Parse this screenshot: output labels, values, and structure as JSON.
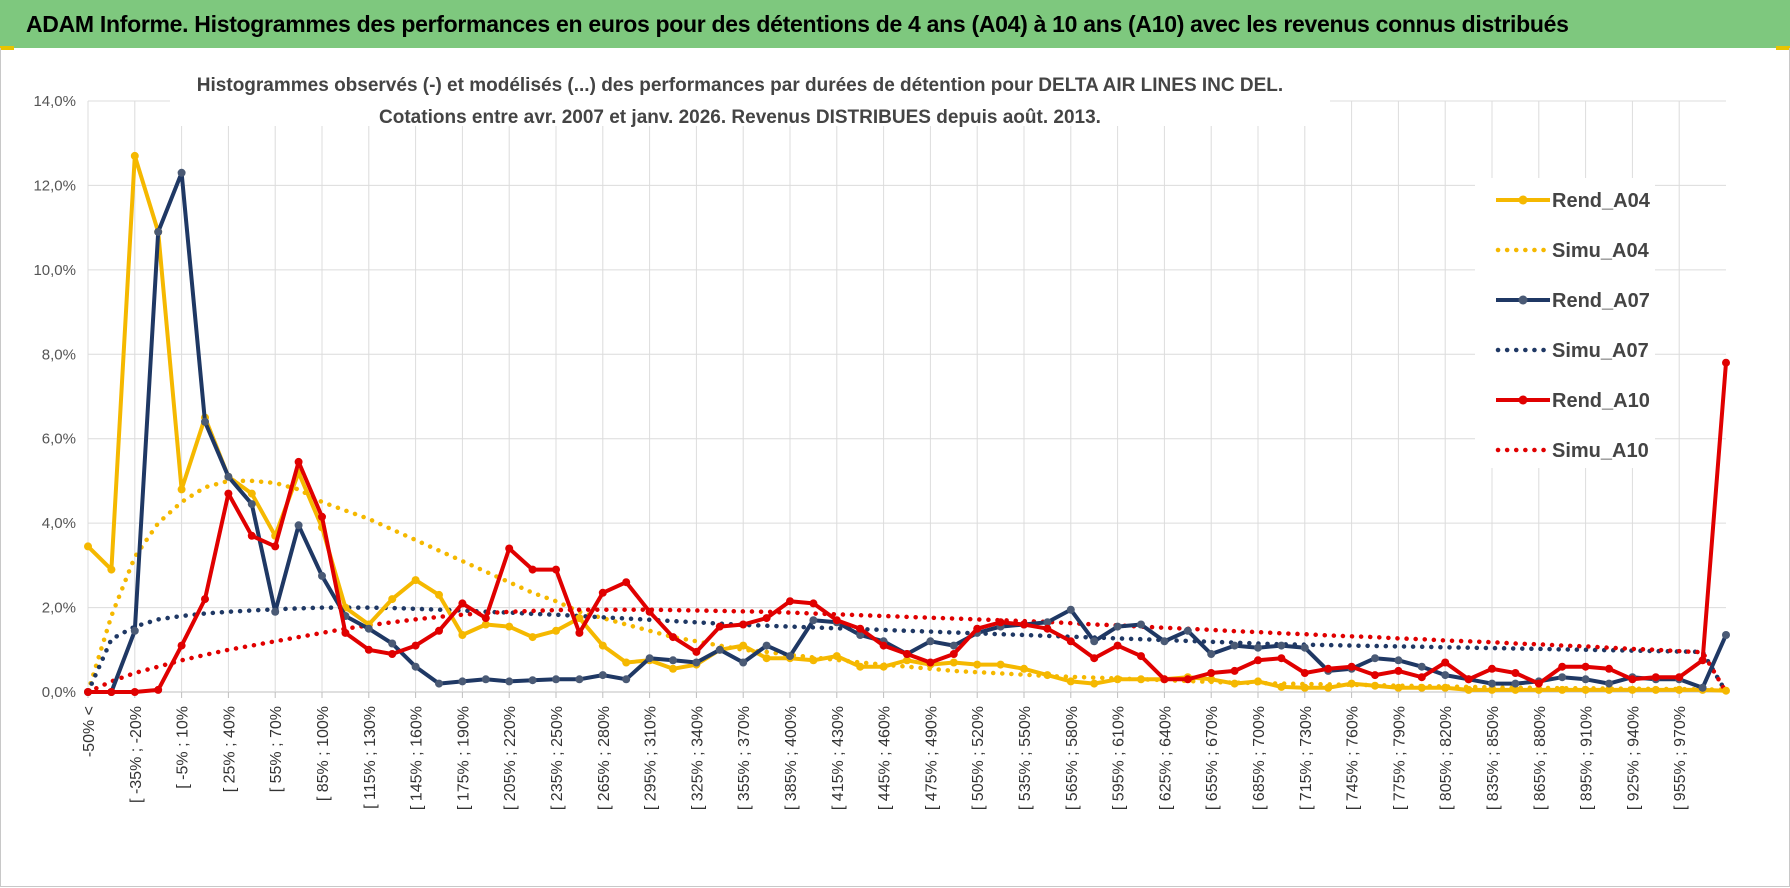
{
  "header": {
    "title": "ADAM Informe. Histogrammes des performances en euros pour des détentions de 4 ans (A04) à 10 ans (A10) avec les revenus connus distribués"
  },
  "chart_data": {
    "type": "line",
    "title_line1": "Histogrammes observés (-) et modélisés (...) des performances par durées de détention pour DELTA AIR LINES INC DEL.",
    "title_line2": "Cotations entre avr. 2007 et janv. 2026. Revenus DISTRIBUES depuis août. 2013.",
    "y_ticks": [
      "0,0%",
      "2,0%",
      "4,0%",
      "6,0%",
      "8,0%",
      "10,0%",
      "12,0%",
      "14,0%"
    ],
    "ylim": [
      0,
      14
    ],
    "x_labels": [
      "-50% <",
      "[ -35% ; -20%",
      "[ -5% ; 10%",
      "[ 25% ; 40%",
      "[ 55% ; 70%",
      "[ 85% ; 100%",
      "[ 115% ; 130%",
      "[ 145% ; 160%",
      "[ 175% ; 190%",
      "[ 205% ; 220%",
      "[ 235% ; 250%",
      "[ 265% ; 280%",
      "[ 295% ; 310%",
      "[ 325% ; 340%",
      "[ 355% ; 370%",
      "[ 385% ; 400%",
      "[ 415% ; 430%",
      "[ 445% ; 460%",
      "[ 475% ; 490%",
      "[ 505% ; 520%",
      "[ 535% ; 550%",
      "[ 565% ; 580%",
      "[ 595% ; 610%",
      "[ 625% ; 640%",
      "[ 655% ; 670%",
      "[ 685% ; 700%",
      "[ 715% ; 730%",
      "[ 745% ; 760%",
      "[ 775% ; 790%",
      "[ 805% ; 820%",
      "[ 835% ; 850%",
      "[ 865% ; 880%",
      "[ 895% ; 910%",
      "[ 925% ; 940%",
      "[ 955% ; 970%"
    ],
    "num_points": 71,
    "series": [
      {
        "name": "Rend_A04",
        "style": "solid",
        "color": "#f5b800",
        "values": [
          3.45,
          2.9,
          12.7,
          10.9,
          4.8,
          6.5,
          5.1,
          4.7,
          3.7,
          5.2,
          3.9,
          2.0,
          1.6,
          2.2,
          2.65,
          2.3,
          1.35,
          1.6,
          1.55,
          1.3,
          1.45,
          1.75,
          1.1,
          0.7,
          0.75,
          0.55,
          0.65,
          1.0,
          1.1,
          0.8,
          0.8,
          0.75,
          0.85,
          0.6,
          0.6,
          0.75,
          0.65,
          0.7,
          0.65,
          0.65,
          0.55,
          0.4,
          0.25,
          0.2,
          0.3,
          0.3,
          0.3,
          0.35,
          0.3,
          0.2,
          0.25,
          0.12,
          0.1,
          0.1,
          0.2,
          0.15,
          0.1,
          0.1,
          0.1,
          0.05,
          0.05,
          0.05,
          0.05,
          0.05,
          0.05,
          0.05,
          0.05,
          0.05,
          0.05,
          0.05,
          0.03
        ]
      },
      {
        "name": "Simu_A04",
        "style": "dotted",
        "color": "#f5b800",
        "values": [
          0.0,
          1.8,
          3.2,
          4.0,
          4.5,
          4.85,
          5.0,
          5.0,
          4.95,
          4.8,
          4.5,
          4.3,
          4.1,
          3.85,
          3.6,
          3.35,
          3.1,
          2.85,
          2.6,
          2.35,
          2.15,
          1.9,
          1.75,
          1.6,
          1.45,
          1.3,
          1.2,
          1.1,
          1.0,
          0.95,
          0.88,
          0.82,
          0.76,
          0.7,
          0.65,
          0.6,
          0.55,
          0.5,
          0.47,
          0.44,
          0.41,
          0.38,
          0.36,
          0.34,
          0.32,
          0.3,
          0.28,
          0.26,
          0.24,
          0.22,
          0.21,
          0.2,
          0.19,
          0.18,
          0.17,
          0.16,
          0.15,
          0.14,
          0.13,
          0.12,
          0.11,
          0.1,
          0.1,
          0.09,
          0.09,
          0.08,
          0.08,
          0.07,
          0.07,
          0.06,
          0.06
        ]
      },
      {
        "name": "Rend_A07",
        "style": "solid",
        "color": "#1f3864",
        "values": [
          0.0,
          0.0,
          1.45,
          10.9,
          12.3,
          6.4,
          5.1,
          4.45,
          1.9,
          3.95,
          2.75,
          1.8,
          1.5,
          1.15,
          0.6,
          0.2,
          0.25,
          0.3,
          0.25,
          0.28,
          0.3,
          0.3,
          0.4,
          0.3,
          0.8,
          0.75,
          0.7,
          1.0,
          0.7,
          1.1,
          0.85,
          1.7,
          1.65,
          1.35,
          1.2,
          0.9,
          1.2,
          1.1,
          1.4,
          1.55,
          1.6,
          1.65,
          1.95,
          1.2,
          1.55,
          1.6,
          1.2,
          1.45,
          0.9,
          1.1,
          1.05,
          1.1,
          1.05,
          0.5,
          0.55,
          0.8,
          0.75,
          0.6,
          0.4,
          0.3,
          0.2,
          0.2,
          0.25,
          0.35,
          0.3,
          0.2,
          0.35,
          0.3,
          0.3,
          0.1,
          1.35
        ]
      },
      {
        "name": "Simu_A07",
        "style": "dotted",
        "color": "#1f3864",
        "values": [
          0.0,
          1.25,
          1.55,
          1.72,
          1.8,
          1.86,
          1.9,
          1.93,
          1.96,
          1.98,
          2.0,
          2.0,
          2.0,
          1.99,
          1.97,
          1.95,
          1.93,
          1.9,
          1.88,
          1.85,
          1.83,
          1.8,
          1.77,
          1.74,
          1.71,
          1.68,
          1.65,
          1.62,
          1.59,
          1.57,
          1.55,
          1.53,
          1.51,
          1.49,
          1.47,
          1.45,
          1.43,
          1.41,
          1.39,
          1.37,
          1.35,
          1.33,
          1.31,
          1.29,
          1.27,
          1.25,
          1.23,
          1.21,
          1.19,
          1.17,
          1.15,
          1.13,
          1.12,
          1.11,
          1.1,
          1.09,
          1.08,
          1.07,
          1.06,
          1.05,
          1.04,
          1.03,
          1.02,
          1.01,
          1.0,
          0.99,
          0.98,
          0.97,
          0.96,
          0.95,
          0.0
        ]
      },
      {
        "name": "Rend_A10",
        "style": "solid",
        "color": "#e00000",
        "values": [
          0.0,
          0.0,
          0.0,
          0.05,
          1.1,
          2.2,
          4.7,
          3.7,
          3.45,
          5.45,
          4.15,
          1.4,
          1.0,
          0.9,
          1.1,
          1.45,
          2.1,
          1.75,
          3.4,
          2.9,
          2.9,
          1.4,
          2.35,
          2.6,
          1.9,
          1.3,
          0.95,
          1.55,
          1.6,
          1.75,
          2.15,
          2.1,
          1.7,
          1.5,
          1.1,
          0.9,
          0.7,
          0.9,
          1.5,
          1.65,
          1.6,
          1.5,
          1.2,
          0.8,
          1.1,
          0.85,
          0.3,
          0.3,
          0.45,
          0.5,
          0.75,
          0.8,
          0.45,
          0.55,
          0.6,
          0.4,
          0.5,
          0.35,
          0.7,
          0.3,
          0.55,
          0.45,
          0.2,
          0.6,
          0.6,
          0.55,
          0.3,
          0.35,
          0.35,
          0.75,
          7.8
        ]
      },
      {
        "name": "Simu_A10",
        "style": "dotted",
        "color": "#e00000",
        "values": [
          0.0,
          0.25,
          0.45,
          0.6,
          0.75,
          0.88,
          1.0,
          1.1,
          1.2,
          1.3,
          1.4,
          1.5,
          1.58,
          1.65,
          1.72,
          1.78,
          1.83,
          1.87,
          1.9,
          1.92,
          1.94,
          1.95,
          1.95,
          1.95,
          1.95,
          1.94,
          1.93,
          1.92,
          1.91,
          1.9,
          1.88,
          1.86,
          1.84,
          1.82,
          1.8,
          1.78,
          1.76,
          1.74,
          1.72,
          1.7,
          1.68,
          1.66,
          1.63,
          1.6,
          1.58,
          1.55,
          1.52,
          1.5,
          1.47,
          1.44,
          1.42,
          1.39,
          1.37,
          1.34,
          1.32,
          1.3,
          1.27,
          1.25,
          1.22,
          1.2,
          1.18,
          1.15,
          1.13,
          1.1,
          1.08,
          1.05,
          1.02,
          1.0,
          0.97,
          0.94,
          0.0
        ]
      }
    ],
    "legend_position": "right"
  }
}
